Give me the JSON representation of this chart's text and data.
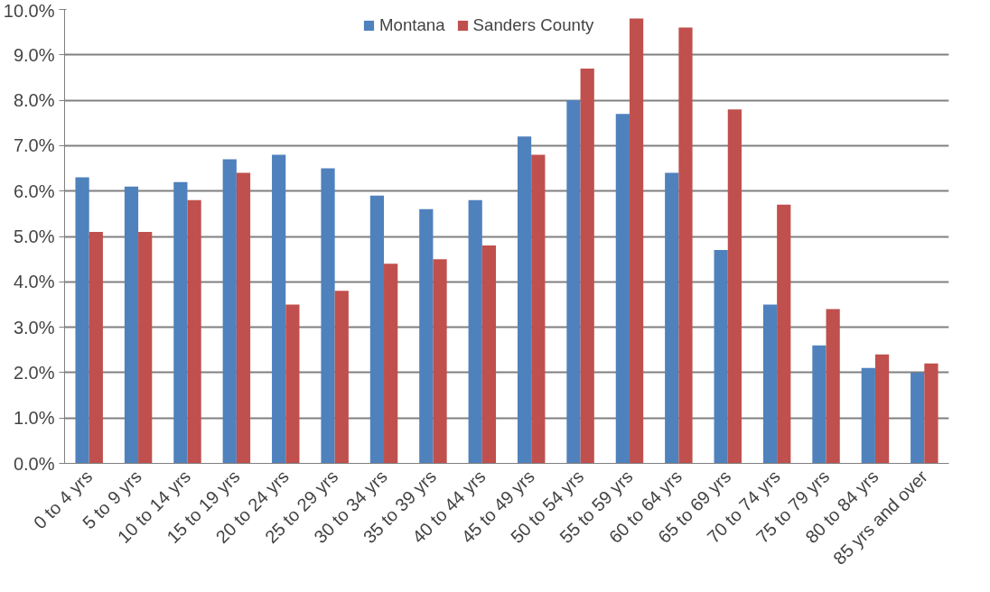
{
  "chart_data": {
    "type": "bar",
    "categories": [
      "0 to 4 yrs",
      "5 to 9 yrs",
      "10 to 14 yrs",
      "15 to 19 yrs",
      "20 to 24 yrs",
      "25 to 29 yrs",
      "30 to 34 yrs",
      "35 to 39 yrs",
      "40 to 44 yrs",
      "45 to 49 yrs",
      "50 to 54 yrs",
      "55 to 59 yrs",
      "60 to 64 yrs",
      "65 to 69 yrs",
      "70 to 74 yrs",
      "75 to 79 yrs",
      "80 to 84 yrs",
      "85 yrs and over"
    ],
    "series": [
      {
        "name": "Montana",
        "color": "#4f81bd",
        "values": [
          6.3,
          6.1,
          6.2,
          6.7,
          6.8,
          6.5,
          5.9,
          5.6,
          5.8,
          7.2,
          8.0,
          7.7,
          6.4,
          4.7,
          3.5,
          2.6,
          2.1,
          2.0
        ]
      },
      {
        "name": "Sanders County",
        "color": "#c0504d",
        "values": [
          5.1,
          5.1,
          5.8,
          6.4,
          3.5,
          3.8,
          4.4,
          4.5,
          4.8,
          6.8,
          8.7,
          9.8,
          9.6,
          7.8,
          5.7,
          3.4,
          2.4,
          2.2
        ]
      }
    ],
    "ylim": [
      0,
      10
    ],
    "yticks": [
      {
        "value": 0,
        "label": "0.0%"
      },
      {
        "value": 1,
        "label": "1.0%"
      },
      {
        "value": 2,
        "label": "2.0%"
      },
      {
        "value": 3,
        "label": "3.0%"
      },
      {
        "value": 4,
        "label": "4.0%"
      },
      {
        "value": 5,
        "label": "5.0%"
      },
      {
        "value": 6,
        "label": "6.0%"
      },
      {
        "value": 7,
        "label": "7.0%"
      },
      {
        "value": 8,
        "label": "8.0%"
      },
      {
        "value": 9,
        "label": "9.0%"
      },
      {
        "value": 10,
        "label": "10.0%"
      }
    ],
    "grid": "y",
    "legend": "top"
  }
}
